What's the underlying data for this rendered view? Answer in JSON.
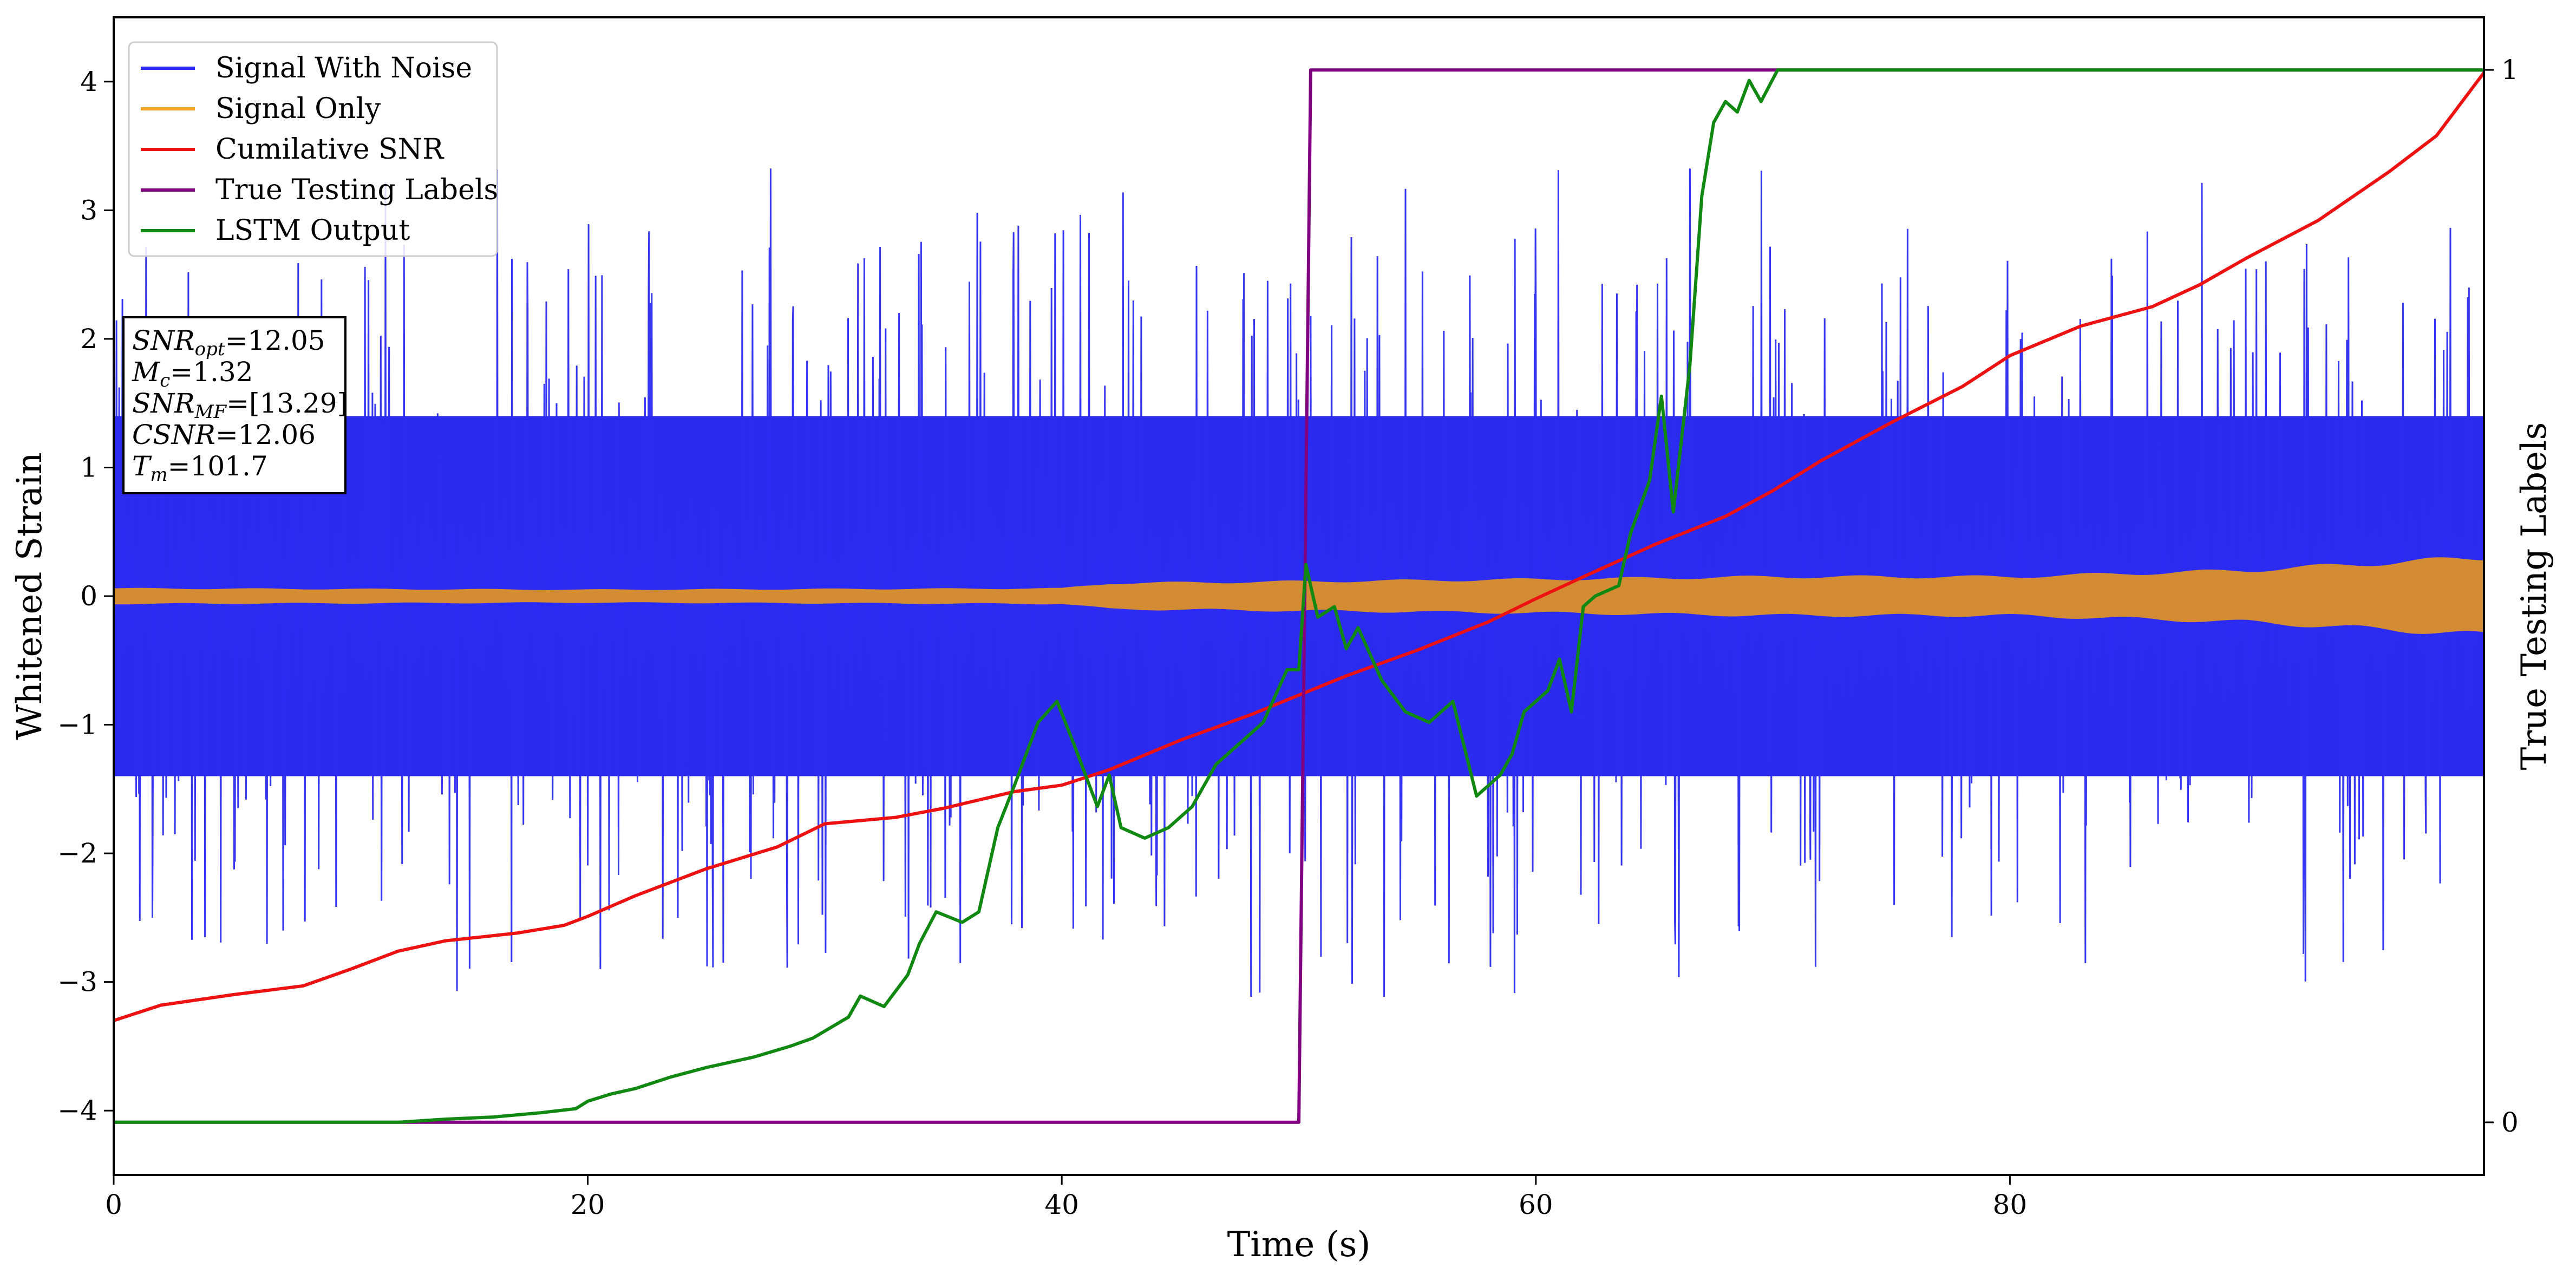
{
  "chart_data": {
    "type": "line",
    "xlabel": "Time (s)",
    "ylabel": "Whitened Strain",
    "y2label": "True Testing Labels",
    "xlim": [
      0,
      100
    ],
    "ylim": [
      -4.5,
      4.5
    ],
    "y2lim": [
      -0.05,
      1.05
    ],
    "xticks": [
      0,
      20,
      40,
      60,
      80
    ],
    "yticks": [
      -4,
      -3,
      -2,
      -1,
      0,
      1,
      2,
      3,
      4
    ],
    "y2ticks": [
      0,
      1
    ],
    "grid": false,
    "legend_placement": "top-left",
    "legend": [
      {
        "name": "Signal With Noise",
        "color": "#2b2bf0"
      },
      {
        "name": "Signal Only",
        "color": "#f5a623"
      },
      {
        "name": "Cumilative SNR",
        "color": "#ee1111"
      },
      {
        "name": "True Testing Labels",
        "color": "#800080"
      },
      {
        "name": "LSTM Output",
        "color": "#118811"
      }
    ],
    "annotation_box": [
      {
        "base": "SNR",
        "sub": "opt",
        "value": "=12.05"
      },
      {
        "base": "M",
        "sub": "c",
        "value": "=1.32"
      },
      {
        "base": "SNR",
        "sub": "MF",
        "value": "=[13.29]"
      },
      {
        "base": "CSNR",
        "sub": "",
        "value": "=12.06"
      },
      {
        "base": "T",
        "sub": "m",
        "value": "=101.7"
      }
    ],
    "noise_band": {
      "upper": 1.4,
      "lower": -1.4,
      "peak_amplitude": 2.9
    },
    "signal_only_envelope": {
      "x": [
        0,
        20,
        40,
        42,
        60,
        70,
        80,
        90,
        100
      ],
      "amplitude": [
        0.06,
        0.05,
        0.06,
        0.1,
        0.13,
        0.15,
        0.15,
        0.2,
        0.3
      ]
    },
    "series": [
      {
        "name": "Cumilative SNR",
        "axis": "left",
        "x": [
          0,
          2,
          5,
          8,
          10,
          12,
          14,
          17,
          19,
          20,
          22,
          25,
          28,
          30,
          33,
          35,
          38,
          40,
          42,
          45,
          48,
          50,
          52,
          55,
          58,
          60,
          62,
          65,
          68,
          70,
          72,
          75,
          78,
          80,
          83,
          86,
          88,
          90,
          93,
          96,
          98,
          100
        ],
        "values": [
          -3.3,
          -3.18,
          -3.1,
          -3.03,
          -2.9,
          -2.76,
          -2.68,
          -2.62,
          -2.56,
          -2.49,
          -2.33,
          -2.12,
          -1.95,
          -1.77,
          -1.72,
          -1.65,
          -1.52,
          -1.47,
          -1.35,
          -1.12,
          -0.92,
          -0.77,
          -0.62,
          -0.42,
          -0.2,
          -0.02,
          0.15,
          0.4,
          0.62,
          0.82,
          1.05,
          1.35,
          1.63,
          1.87,
          2.1,
          2.25,
          2.42,
          2.63,
          2.92,
          3.3,
          3.58,
          4.07
        ]
      },
      {
        "name": "True Testing Labels",
        "axis": "right",
        "x": [
          0,
          50,
          50.5,
          100
        ],
        "values": [
          0,
          0,
          1,
          1
        ]
      },
      {
        "name": "LSTM Output",
        "axis": "right",
        "x": [
          0,
          12,
          14,
          16,
          18,
          19.5,
          20,
          21,
          22,
          23.5,
          25,
          27,
          28.5,
          29.5,
          31,
          31.5,
          32.5,
          33.5,
          34,
          34.7,
          35.8,
          36.5,
          37.3,
          38,
          39,
          39.8,
          40.5,
          41.5,
          42,
          42.5,
          43.5,
          44.5,
          45.5,
          46.5,
          47.5,
          48.5,
          49.5,
          50,
          50.3,
          50.8,
          51.5,
          52,
          52.5,
          53.5,
          54.5,
          55.5,
          56.5,
          57.5,
          58.5,
          59,
          59.5,
          60,
          60.5,
          61,
          61.5,
          62,
          62.5,
          63.5,
          64,
          64.8,
          65.3,
          65.8,
          66.5,
          67,
          67.5,
          68,
          68.5,
          69,
          69.5,
          70.2,
          71,
          71.5,
          73,
          100
        ],
        "values": [
          0,
          0,
          0.003,
          0.005,
          0.009,
          0.013,
          0.02,
          0.027,
          0.032,
          0.043,
          0.052,
          0.062,
          0.072,
          0.08,
          0.1,
          0.12,
          0.11,
          0.14,
          0.17,
          0.2,
          0.19,
          0.2,
          0.28,
          0.32,
          0.38,
          0.4,
          0.36,
          0.3,
          0.33,
          0.28,
          0.27,
          0.28,
          0.3,
          0.34,
          0.36,
          0.38,
          0.43,
          0.43,
          0.53,
          0.48,
          0.49,
          0.45,
          0.47,
          0.42,
          0.39,
          0.38,
          0.4,
          0.31,
          0.33,
          0.35,
          0.39,
          0.4,
          0.41,
          0.44,
          0.39,
          0.49,
          0.5,
          0.51,
          0.56,
          0.61,
          0.69,
          0.58,
          0.72,
          0.88,
          0.95,
          0.97,
          0.96,
          0.99,
          0.97,
          1.0,
          1.0,
          1.0,
          1.0,
          1.0
        ]
      }
    ]
  }
}
